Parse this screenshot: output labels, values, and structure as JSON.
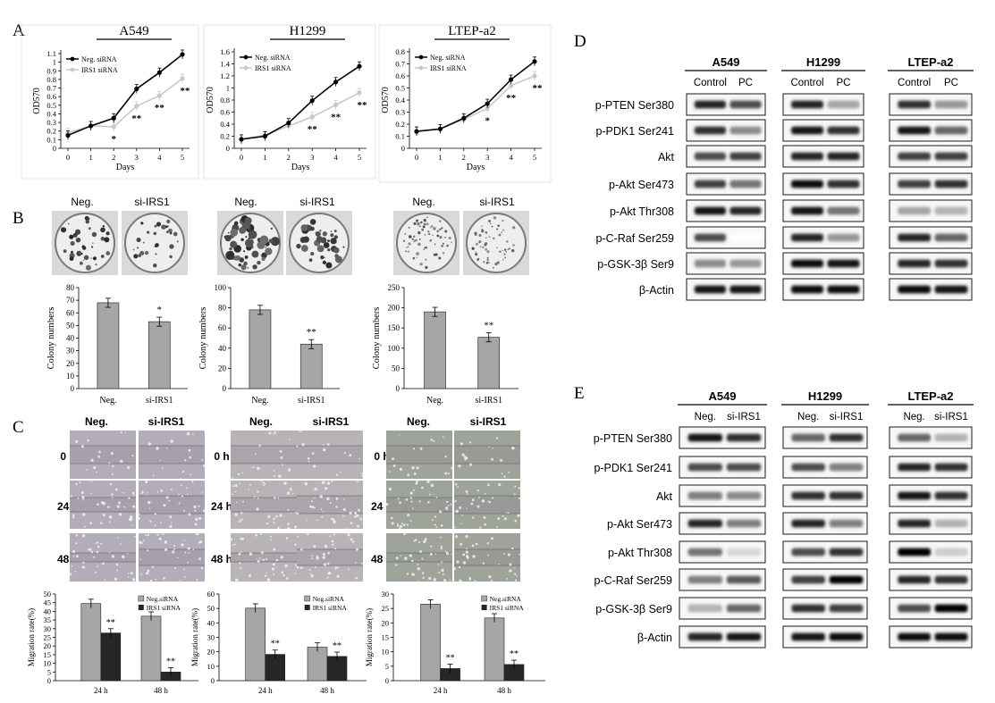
{
  "panel_labels": [
    "A",
    "B",
    "C",
    "D",
    "E"
  ],
  "panelA": {
    "charts": [
      {
        "title": "A549",
        "ylabel": "OD570",
        "xlabel": "Days",
        "yticks": [
          "0",
          "0.1",
          "0.2",
          "0.3",
          "0.4",
          "0.5",
          "0.6",
          "0.7",
          "0.8",
          "0.9",
          "1",
          "1.1"
        ],
        "ylim": [
          0,
          1.1
        ],
        "legend": [
          "Neg. siRNA",
          "IRS1 siRNA"
        ],
        "neg": [
          0.15,
          0.26,
          0.35,
          0.69,
          0.88,
          1.09
        ],
        "irs": [
          0.18,
          0.26,
          0.25,
          0.49,
          0.61,
          0.81
        ],
        "sig": [
          {
            "x": 2,
            "t": "*"
          },
          {
            "x": 3,
            "t": "**"
          },
          {
            "x": 4,
            "t": "**"
          },
          {
            "x": 5,
            "t": "**"
          }
        ]
      },
      {
        "title": "H1299",
        "ylabel": "OD570",
        "xlabel": "Days",
        "yticks": [
          "0",
          "0.2",
          "0.4",
          "0.6",
          "0.8",
          "1",
          "1.2",
          "1.4",
          "1.6"
        ],
        "ylim": [
          0,
          1.6
        ],
        "legend": [
          "Neg. siRNA",
          "IRS1 siRNA"
        ],
        "neg": [
          0.15,
          0.2,
          0.42,
          0.79,
          1.1,
          1.36
        ],
        "irs": [
          0.15,
          0.22,
          0.37,
          0.52,
          0.72,
          0.92
        ],
        "sig": [
          {
            "x": 3,
            "t": "**"
          },
          {
            "x": 4,
            "t": "**"
          },
          {
            "x": 5,
            "t": "**"
          }
        ]
      },
      {
        "title": "LTEP-a2",
        "ylabel": "OD570",
        "xlabel": "Days",
        "yticks": [
          "0",
          "0.1",
          "0.2",
          "0.3",
          "0.4",
          "0.5",
          "0.6",
          "0.7",
          "0.8"
        ],
        "ylim": [
          0,
          0.8
        ],
        "legend": [
          "Neg. siRNA",
          "IRS1 siRNA"
        ],
        "neg": [
          0.14,
          0.16,
          0.25,
          0.37,
          0.57,
          0.72
        ],
        "irs": [
          0.14,
          0.16,
          0.24,
          0.33,
          0.52,
          0.6
        ],
        "sig": [
          {
            "x": 3,
            "t": "*"
          },
          {
            "x": 4,
            "t": "**"
          },
          {
            "x": 5,
            "t": "**"
          }
        ]
      }
    ],
    "xticks": [
      "0",
      "1",
      "2",
      "3",
      "4",
      "5"
    ]
  },
  "panelB": {
    "photo_labels": [
      "Neg.",
      "si-IRS1"
    ],
    "ylabel": "Colony numbers",
    "categories": [
      "Neg.",
      "si-IRS1"
    ],
    "charts": [
      {
        "values": [
          68,
          53
        ],
        "yticks": [
          "0",
          "10",
          "20",
          "30",
          "40",
          "50",
          "60",
          "70",
          "80"
        ],
        "ylim": [
          0,
          80
        ],
        "sig": "*"
      },
      {
        "values": [
          78,
          44
        ],
        "yticks": [
          "0",
          "20",
          "40",
          "60",
          "80",
          "100"
        ],
        "ylim": [
          0,
          100
        ],
        "sig": "**"
      },
      {
        "values": [
          190,
          127
        ],
        "yticks": [
          "0",
          "50",
          "100",
          "150",
          "200",
          "250"
        ],
        "ylim": [
          0,
          250
        ],
        "sig": "**"
      }
    ]
  },
  "panelC": {
    "photo_labels": [
      "Neg.",
      "si-IRS1"
    ],
    "time_labels": [
      "0 h",
      "24 h",
      "48 h"
    ],
    "ylabel": "Migration rate(%)",
    "categories": [
      "24 h",
      "48 h"
    ],
    "legend": [
      "Neg.siRNA",
      "IRS1 siRNA"
    ],
    "charts": [
      {
        "neg": [
          44.5,
          37.2
        ],
        "irs": [
          27.5,
          5.0
        ],
        "yticks": [
          "0",
          "5",
          "10",
          "15",
          "20",
          "25",
          "30",
          "35",
          "40",
          "45",
          "50"
        ],
        "ylim": [
          0,
          50
        ]
      },
      {
        "neg": [
          50.2,
          23.2
        ],
        "irs": [
          18.2,
          16.8
        ],
        "yticks": [
          "0",
          "10",
          "20",
          "30",
          "40",
          "50",
          "60"
        ],
        "ylim": [
          0,
          60
        ]
      },
      {
        "neg": [
          26.5,
          21.7
        ],
        "irs": [
          4.2,
          5.6
        ],
        "yticks": [
          "0",
          "5",
          "10",
          "15",
          "20",
          "25",
          "30"
        ],
        "ylim": [
          0,
          30
        ]
      }
    ]
  },
  "panelD": {
    "cells": [
      "A549",
      "H1299",
      "LTEP-a2"
    ],
    "lanes": [
      "Control",
      "PC"
    ],
    "rows": [
      "p-PTEN Ser380",
      "p-PDK1 Ser241",
      "Akt",
      "p-Akt Ser473",
      "p-Akt Thr308",
      "p-C-Raf Ser259",
      "p-GSK-3β Ser9",
      "β-Actin"
    ]
  },
  "panelE": {
    "cells": [
      "A549",
      "H1299",
      "LTEP-a2"
    ],
    "lanes": [
      "Neg.",
      "si-IRS1"
    ],
    "rows": [
      "p-PTEN Ser380",
      "p-PDK1 Ser241",
      "Akt",
      "p-Akt Ser473",
      "p-Akt Thr308",
      "p-C-Raf Ser259",
      "p-GSK-3β Ser9",
      "β-Actin"
    ]
  }
}
